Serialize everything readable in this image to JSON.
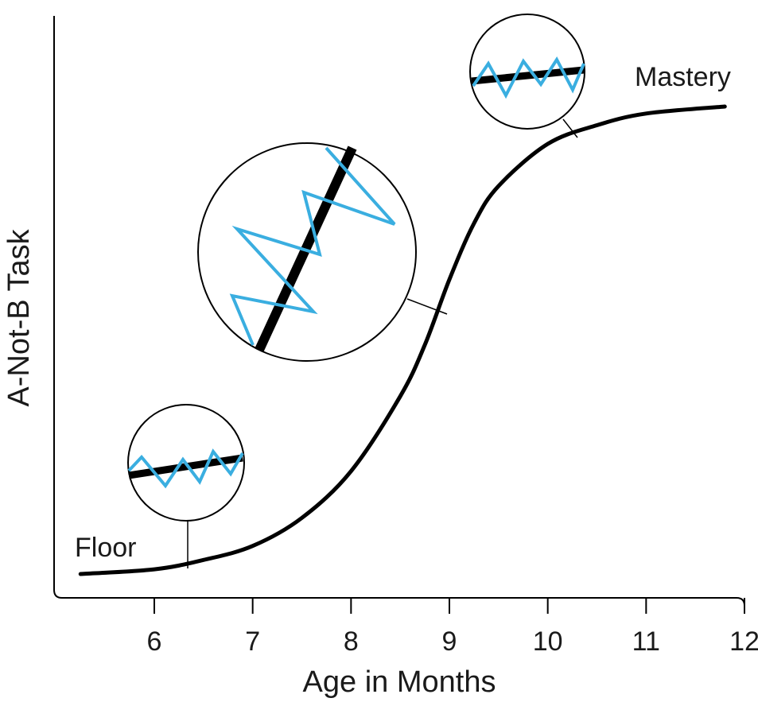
{
  "chart_data": {
    "type": "line",
    "title": "",
    "xlabel": "Age in Months",
    "ylabel": "A-Not-B Task",
    "xlim": [
      5.2,
      12
    ],
    "ylim": [
      0,
      1
    ],
    "x_ticks": [
      6,
      7,
      8,
      9,
      10,
      11,
      12
    ],
    "x_tick_labels": [
      "6",
      "7",
      "8",
      "9",
      "10",
      "11",
      "12"
    ],
    "grid": false,
    "series": [
      {
        "color": "#000000",
        "points": [
          {
            "x": 5.25,
            "y": 0.0
          },
          {
            "x": 6.0,
            "y": 0.01
          },
          {
            "x": 6.5,
            "y": 0.03
          },
          {
            "x": 7.0,
            "y": 0.06
          },
          {
            "x": 7.5,
            "y": 0.12
          },
          {
            "x": 8.0,
            "y": 0.22
          },
          {
            "x": 8.5,
            "y": 0.38
          },
          {
            "x": 8.75,
            "y": 0.49
          },
          {
            "x": 9.0,
            "y": 0.63
          },
          {
            "x": 9.25,
            "y": 0.75
          },
          {
            "x": 9.5,
            "y": 0.83
          },
          {
            "x": 10.0,
            "y": 0.92
          },
          {
            "x": 10.5,
            "y": 0.96
          },
          {
            "x": 11.0,
            "y": 0.985
          },
          {
            "x": 11.8,
            "y": 1.0
          }
        ]
      }
    ],
    "annotations": [
      {
        "label": "Floor",
        "x": 5.25,
        "y": 0.0
      },
      {
        "label": "Mastery",
        "x": 11.8,
        "y": 1.0
      }
    ],
    "insets": [
      {
        "name": "floor-inset",
        "at_x": 6.35,
        "line_slope": "shallow",
        "zigzag_amplitude": "small",
        "colors": {
          "line": "#000000",
          "zigzag": "#3aaee0"
        }
      },
      {
        "name": "transition-inset",
        "at_x": 9.0,
        "line_slope": "steep",
        "zigzag_amplitude": "large",
        "colors": {
          "line": "#000000",
          "zigzag": "#3aaee0"
        }
      },
      {
        "name": "mastery-inset",
        "at_x": 10.3,
        "line_slope": "shallow",
        "zigzag_amplitude": "small",
        "colors": {
          "line": "#000000",
          "zigzag": "#3aaee0"
        }
      }
    ]
  }
}
